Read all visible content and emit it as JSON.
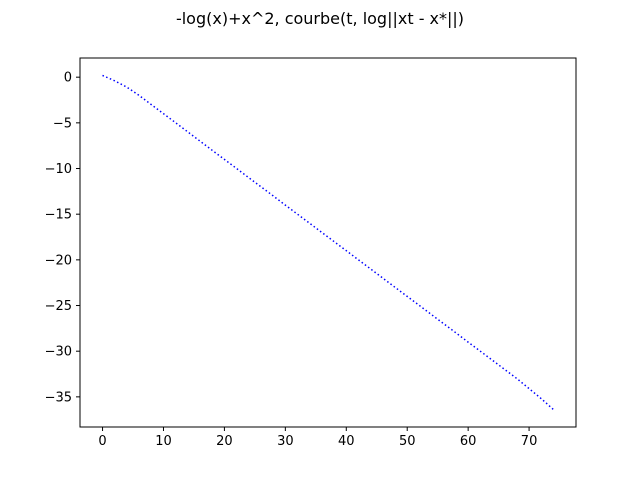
{
  "chart_data": {
    "type": "line",
    "title": "-log(x)+x^2, courbe(t, log||xt - x*||)",
    "xlabel": "",
    "ylabel": "",
    "xlim": [
      -3.7,
      77.7
    ],
    "ylim": [
      -38.3,
      2.1
    ],
    "x_ticks": [
      0,
      10,
      20,
      30,
      40,
      50,
      60,
      70
    ],
    "y_ticks": [
      0,
      -5,
      -10,
      -15,
      -20,
      -25,
      -30,
      -35
    ],
    "grid": false,
    "line_style": "dotted",
    "series": [
      {
        "color": "#0000ff",
        "x": [
          0,
          2,
          4,
          6,
          8,
          10,
          12,
          14,
          16,
          18,
          20,
          22,
          24,
          26,
          28,
          30,
          32,
          34,
          36,
          38,
          40,
          42,
          44,
          46,
          48,
          50,
          52,
          54,
          56,
          58,
          60,
          62,
          64,
          66,
          68,
          70,
          72,
          74
        ],
        "y": [
          0.2,
          -0.4,
          -1.1,
          -2.0,
          -3.0,
          -4.0,
          -5.0,
          -6.0,
          -7.0,
          -8.0,
          -9.0,
          -10.0,
          -11.0,
          -12.0,
          -13.0,
          -14.0,
          -15.0,
          -16.0,
          -17.0,
          -18.0,
          -19.0,
          -20.0,
          -21.0,
          -22.0,
          -23.0,
          -24.0,
          -25.0,
          -26.0,
          -27.0,
          -28.0,
          -29.0,
          -30.0,
          -31.0,
          -32.0,
          -33.0,
          -34.1,
          -35.2,
          -36.4
        ]
      }
    ]
  }
}
